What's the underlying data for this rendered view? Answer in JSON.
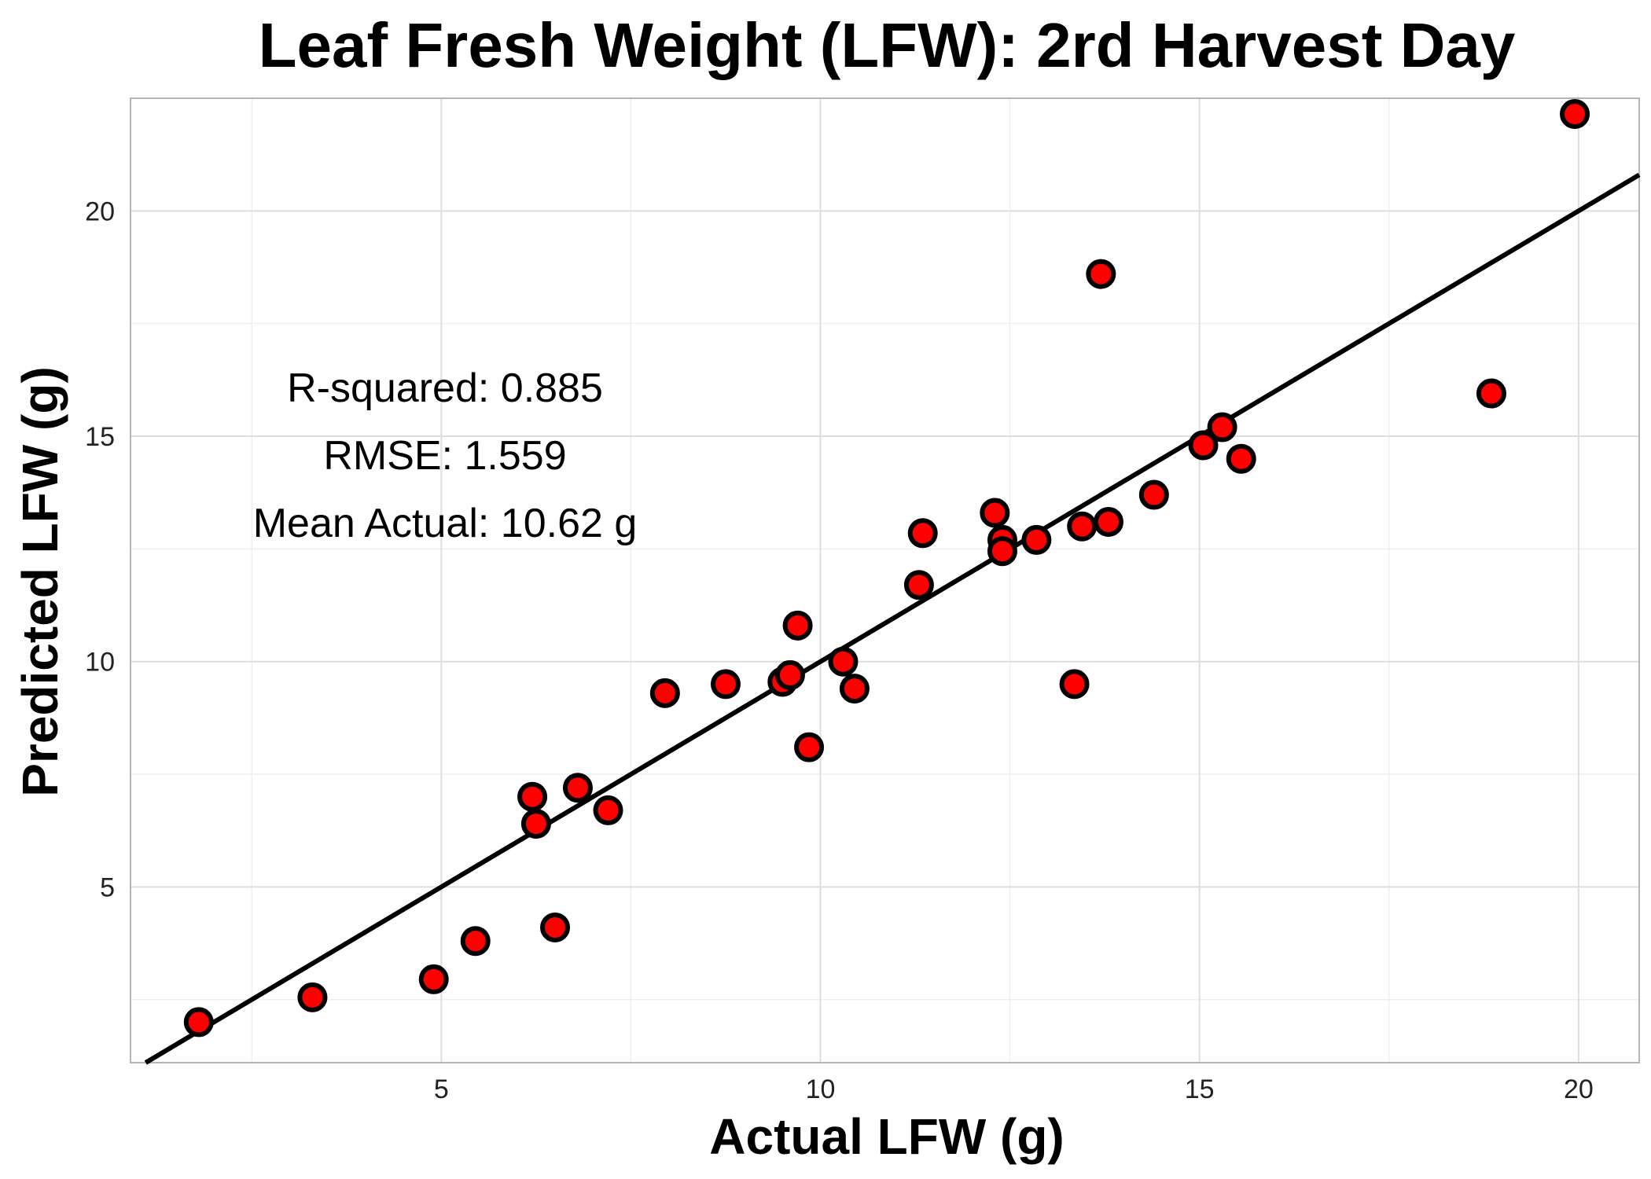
{
  "chart_data": {
    "type": "scatter",
    "title": "Leaf Fresh Weight (LFW): 2rd Harvest Day",
    "xlabel": "Actual LFW (g)",
    "ylabel": "Predicted LFW (g)",
    "xlim": [
      0.9,
      20.8
    ],
    "ylim": [
      1.1,
      22.5
    ],
    "x_ticks": [
      5,
      10,
      15,
      20
    ],
    "y_ticks": [
      5,
      10,
      15,
      20
    ],
    "grid": true,
    "reference_line": {
      "slope": 1,
      "intercept": 0
    },
    "point_color": "#ff0000",
    "point_outline_color": "#000000",
    "annotations": [
      "R-squared:  0.885",
      "RMSE:  1.559",
      "Mean Actual:  10.62 g"
    ],
    "points": [
      {
        "x": 1.8,
        "y": 2.0
      },
      {
        "x": 3.3,
        "y": 2.55
      },
      {
        "x": 4.9,
        "y": 2.95
      },
      {
        "x": 5.45,
        "y": 3.8
      },
      {
        "x": 6.2,
        "y": 7.0
      },
      {
        "x": 6.25,
        "y": 6.4
      },
      {
        "x": 6.5,
        "y": 4.1
      },
      {
        "x": 6.8,
        "y": 7.2
      },
      {
        "x": 7.2,
        "y": 6.7
      },
      {
        "x": 7.95,
        "y": 9.3
      },
      {
        "x": 8.75,
        "y": 9.5
      },
      {
        "x": 9.5,
        "y": 9.55
      },
      {
        "x": 9.6,
        "y": 9.7
      },
      {
        "x": 9.7,
        "y": 10.8
      },
      {
        "x": 9.85,
        "y": 8.1
      },
      {
        "x": 10.3,
        "y": 10.0
      },
      {
        "x": 10.45,
        "y": 9.4
      },
      {
        "x": 11.3,
        "y": 11.7
      },
      {
        "x": 11.35,
        "y": 12.85
      },
      {
        "x": 12.3,
        "y": 13.3
      },
      {
        "x": 12.4,
        "y": 12.7
      },
      {
        "x": 12.4,
        "y": 12.45
      },
      {
        "x": 12.85,
        "y": 12.7
      },
      {
        "x": 13.35,
        "y": 9.5
      },
      {
        "x": 13.45,
        "y": 13.0
      },
      {
        "x": 13.7,
        "y": 18.6
      },
      {
        "x": 13.8,
        "y": 13.1
      },
      {
        "x": 14.4,
        "y": 13.7
      },
      {
        "x": 15.05,
        "y": 14.8
      },
      {
        "x": 15.3,
        "y": 15.2
      },
      {
        "x": 15.55,
        "y": 14.5
      },
      {
        "x": 18.85,
        "y": 15.95
      },
      {
        "x": 19.95,
        "y": 22.15
      }
    ]
  }
}
